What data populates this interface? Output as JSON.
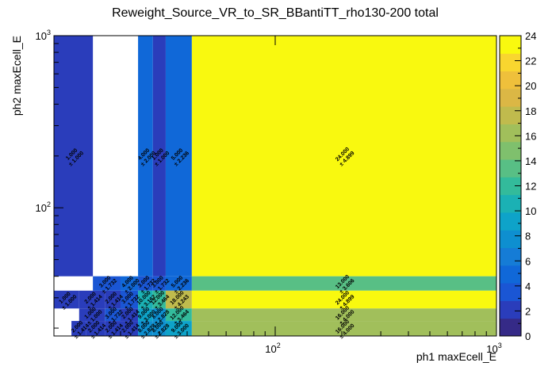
{
  "chart_data": {
    "type": "heatmap",
    "title": "Reweight_Source_VR_to_SR_BBantiTT_rho130-200 total",
    "xlabel": "ph1 maxEcell_E",
    "ylabel": "ph2 maxEcell_E",
    "x_scale": "log",
    "y_scale": "log",
    "x_tick_labels": [
      {
        "base": "10",
        "exp": "2"
      },
      {
        "base": "10",
        "exp": "3"
      }
    ],
    "y_tick_labels": [
      {
        "base": "10",
        "exp": "2"
      },
      {
        "base": "10",
        "exp": "3"
      }
    ],
    "colorbar": {
      "min": 0,
      "max": 24,
      "tick_values": [
        0,
        2,
        4,
        6,
        8,
        10,
        12,
        14,
        16,
        18,
        20,
        22,
        24
      ],
      "tick_labels": [
        "0",
        "2",
        "4",
        "6",
        "8",
        "10",
        "12",
        "14",
        "16",
        "18",
        "20",
        "22",
        "24"
      ]
    },
    "grid": false,
    "cells": [
      {
        "x": [
          10,
          15
        ],
        "y": [
          40,
          1000
        ],
        "value": 1,
        "label": "1.000",
        "err": "± 1.000"
      },
      {
        "x": [
          24,
          28
        ],
        "y": [
          40,
          1000
        ],
        "value": 4,
        "label": "4.000",
        "err": "± 2.000"
      },
      {
        "x": [
          28,
          32
        ],
        "y": [
          40,
          1000
        ],
        "value": 1,
        "label": "1.000",
        "err": "± 1.000"
      },
      {
        "x": [
          32,
          42
        ],
        "y": [
          40,
          1000
        ],
        "value": 5,
        "label": "5.000",
        "err": "± 2.236"
      },
      {
        "x": [
          42,
          1000
        ],
        "y": [
          40,
          1000
        ],
        "value": 24,
        "label": "24.000",
        "err": "± 4.899"
      },
      {
        "x": [
          15,
          20
        ],
        "y": [
          33,
          40
        ],
        "value": 3,
        "label": "3.000",
        "err": "± 1.732"
      },
      {
        "x": [
          20,
          24
        ],
        "y": [
          33,
          40
        ],
        "value": 4,
        "label": "4.000",
        "err": "± 2.000"
      },
      {
        "x": [
          24,
          28
        ],
        "y": [
          33,
          40
        ],
        "value": 3,
        "label": "3.000",
        "err": "± 1.732"
      },
      {
        "x": [
          28,
          32
        ],
        "y": [
          33,
          40
        ],
        "value": 3,
        "label": "3.000",
        "err": "± 1.732"
      },
      {
        "x": [
          32,
          42
        ],
        "y": [
          33,
          40
        ],
        "value": 5,
        "label": "5.000",
        "err": "± 2.236"
      },
      {
        "x": [
          42,
          1000
        ],
        "y": [
          33,
          40
        ],
        "value": 13,
        "label": "13.000",
        "err": "± 3.606"
      },
      {
        "x": [
          10,
          13
        ],
        "y": [
          26,
          33
        ],
        "value": 1,
        "label": "1.000",
        "err": "± 1.000"
      },
      {
        "x": [
          13,
          17
        ],
        "y": [
          26,
          33
        ],
        "value": 2,
        "label": "2.000",
        "err": "± 1.414"
      },
      {
        "x": [
          17,
          20
        ],
        "y": [
          26,
          33
        ],
        "value": 2,
        "label": "2.000",
        "err": "± 1.414"
      },
      {
        "x": [
          20,
          24
        ],
        "y": [
          26,
          33
        ],
        "value": 3,
        "label": "3.000",
        "err": "± 1.732"
      },
      {
        "x": [
          24,
          28
        ],
        "y": [
          26,
          33
        ],
        "value": 10,
        "label": "10.000",
        "err": "± 3.162"
      },
      {
        "x": [
          28,
          32
        ],
        "y": [
          26,
          33
        ],
        "value": 12,
        "label": "12.000",
        "err": "± 3.464"
      },
      {
        "x": [
          32,
          42
        ],
        "y": [
          26,
          33
        ],
        "value": 18,
        "label": "18.000",
        "err": "± 4.243"
      },
      {
        "x": [
          42,
          1000
        ],
        "y": [
          26,
          33
        ],
        "value": 24,
        "label": "24.000",
        "err": "± 4.899"
      },
      {
        "x": [
          13,
          17
        ],
        "y": [
          22,
          26
        ],
        "value": 1,
        "label": "1.000",
        "err": "± 1.000"
      },
      {
        "x": [
          17,
          20
        ],
        "y": [
          22,
          26
        ],
        "value": 3,
        "label": "3.000",
        "err": "± 1.732"
      },
      {
        "x": [
          20,
          24
        ],
        "y": [
          22,
          26
        ],
        "value": 2,
        "label": "2.000",
        "err": "± 1.414"
      },
      {
        "x": [
          24,
          28
        ],
        "y": [
          22,
          26
        ],
        "value": 9,
        "label": "9.000",
        "err": "± 3.000"
      },
      {
        "x": [
          28,
          32
        ],
        "y": [
          22,
          26
        ],
        "value": 8,
        "label": "8.000",
        "err": "± 2.828"
      },
      {
        "x": [
          32,
          42
        ],
        "y": [
          22,
          26
        ],
        "value": 12,
        "label": "12.000",
        "err": "± 3.464"
      },
      {
        "x": [
          42,
          1000
        ],
        "y": [
          22,
          26
        ],
        "value": 16,
        "label": "16.000",
        "err": "± 4.000"
      },
      {
        "x": [
          12,
          14
        ],
        "y": [
          18,
          22
        ],
        "value": 2,
        "label": "2.000",
        "err": "± 1.414"
      },
      {
        "x": [
          14,
          17
        ],
        "y": [
          18,
          22
        ],
        "value": 2,
        "label": "2.000",
        "err": "± 1.414"
      },
      {
        "x": [
          17,
          20
        ],
        "y": [
          18,
          22
        ],
        "value": 2,
        "label": "2.000",
        "err": "± 1.414"
      },
      {
        "x": [
          20,
          24
        ],
        "y": [
          18,
          22
        ],
        "value": 2,
        "label": "2.000",
        "err": "± 1.414"
      },
      {
        "x": [
          24,
          28
        ],
        "y": [
          18,
          22
        ],
        "value": 8,
        "label": "8.000",
        "err": "± 2.828"
      },
      {
        "x": [
          28,
          32
        ],
        "y": [
          18,
          22
        ],
        "value": 8,
        "label": "8.000",
        "err": "± 2.828"
      },
      {
        "x": [
          32,
          42
        ],
        "y": [
          18,
          22
        ],
        "value": 9,
        "label": "9.000",
        "err": "± 3.000"
      },
      {
        "x": [
          42,
          1000
        ],
        "y": [
          18,
          22
        ],
        "value": 16,
        "label": "16.000",
        "err": "± 4.000"
      }
    ]
  }
}
